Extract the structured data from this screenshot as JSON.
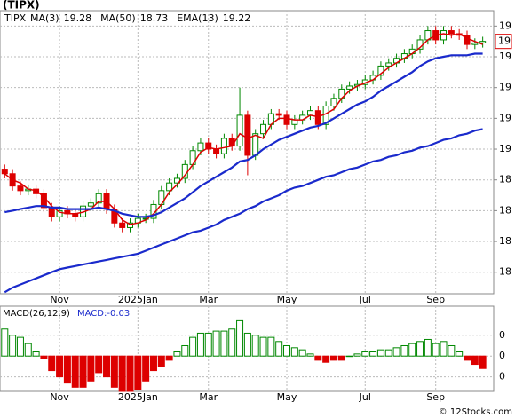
{
  "chart_data": {
    "type": "candlestick",
    "title": "(TIPX)",
    "symbol": "TIPX",
    "symbol_color": "#008800",
    "xlim": [
      -0.6,
      62.4
    ],
    "xticks": [
      {
        "value": 7,
        "label": "Nov"
      },
      {
        "value": 17,
        "label": "2025Jan"
      },
      {
        "value": 26,
        "label": "Mar"
      },
      {
        "value": 36,
        "label": "May"
      },
      {
        "value": 46,
        "label": "Jul"
      },
      {
        "value": 55,
        "label": "Sep"
      }
    ],
    "ylim": [
      17.66,
      19.5
    ],
    "yticks": [
      {
        "value": 19.4,
        "label": "19"
      },
      {
        "value": 19.2,
        "label": "19"
      },
      {
        "value": 19.0,
        "label": "19"
      },
      {
        "value": 18.8,
        "label": "19"
      },
      {
        "value": 18.6,
        "label": "19"
      },
      {
        "value": 18.4,
        "label": "18"
      },
      {
        "value": 18.2,
        "label": "18"
      },
      {
        "value": 18.0,
        "label": "18"
      },
      {
        "value": 17.8,
        "label": "18"
      }
    ],
    "grid": true,
    "up_color": "#008800",
    "down_color": "#dd0000",
    "open": [
      18.47,
      18.44,
      18.36,
      18.33,
      18.34,
      18.31,
      18.22,
      18.16,
      18.2,
      18.18,
      18.16,
      18.23,
      18.25,
      18.31,
      18.21,
      18.12,
      18.09,
      18.12,
      18.15,
      18.15,
      18.24,
      18.33,
      18.38,
      18.41,
      18.5,
      18.59,
      18.64,
      18.6,
      18.57,
      18.67,
      18.62,
      18.82,
      18.56,
      18.7,
      18.76,
      18.83,
      18.82,
      18.76,
      18.79,
      18.82,
      18.85,
      18.76,
      18.88,
      18.93,
      18.99,
      19.01,
      19.02,
      19.05,
      19.08,
      19.14,
      19.16,
      19.19,
      19.22,
      19.25,
      19.31,
      19.37,
      19.31,
      19.37,
      19.35,
      19.34,
      19.28,
      19.29
    ],
    "high": [
      18.5,
      18.47,
      18.39,
      18.37,
      18.37,
      18.34,
      18.25,
      18.23,
      18.23,
      18.21,
      18.26,
      18.28,
      18.34,
      18.34,
      18.24,
      18.15,
      18.15,
      18.18,
      18.18,
      18.27,
      18.36,
      18.41,
      18.44,
      18.53,
      18.62,
      18.67,
      18.67,
      18.63,
      18.7,
      18.7,
      19.0,
      18.85,
      18.73,
      18.79,
      18.86,
      18.86,
      18.85,
      18.82,
      18.85,
      18.88,
      18.88,
      18.91,
      18.96,
      19.02,
      19.04,
      19.05,
      19.08,
      19.11,
      19.17,
      19.19,
      19.22,
      19.25,
      19.28,
      19.34,
      19.4,
      19.4,
      19.4,
      19.4,
      19.38,
      19.37,
      19.32,
      19.33
    ],
    "low": [
      18.41,
      18.33,
      18.3,
      18.3,
      18.28,
      18.19,
      18.13,
      18.13,
      18.15,
      18.13,
      18.13,
      18.2,
      18.22,
      18.18,
      18.09,
      18.06,
      18.06,
      18.09,
      18.12,
      18.12,
      18.21,
      18.3,
      18.35,
      18.38,
      18.47,
      18.56,
      18.57,
      18.54,
      18.54,
      18.59,
      18.59,
      18.43,
      18.53,
      18.67,
      18.73,
      18.79,
      18.73,
      18.73,
      18.76,
      18.79,
      18.73,
      18.73,
      18.85,
      18.9,
      18.96,
      18.98,
      18.99,
      19.02,
      19.05,
      19.11,
      19.13,
      19.16,
      19.19,
      19.22,
      19.28,
      19.28,
      19.28,
      19.32,
      19.31,
      19.25,
      19.25,
      19.26
    ],
    "close": [
      18.44,
      18.36,
      18.33,
      18.34,
      18.31,
      18.22,
      18.16,
      18.2,
      18.18,
      18.16,
      18.23,
      18.25,
      18.31,
      18.21,
      18.12,
      18.09,
      18.12,
      18.15,
      18.15,
      18.24,
      18.33,
      18.38,
      18.41,
      18.5,
      18.59,
      18.64,
      18.6,
      18.57,
      18.67,
      18.62,
      18.82,
      18.56,
      18.7,
      18.76,
      18.83,
      18.82,
      18.76,
      18.79,
      18.82,
      18.85,
      18.76,
      18.88,
      18.93,
      18.99,
      19.01,
      19.02,
      19.05,
      19.08,
      19.14,
      19.16,
      19.19,
      19.22,
      19.25,
      19.31,
      19.37,
      19.31,
      19.37,
      19.35,
      19.34,
      19.28,
      19.29,
      19.3
    ],
    "last_price": {
      "value": 19.3,
      "label": "19"
    },
    "series": [
      {
        "name": "MA(3)",
        "color": "#dd0000",
        "last": 19.28,
        "values": [
          18.44,
          18.4,
          18.38,
          18.34,
          18.33,
          18.29,
          18.23,
          18.19,
          18.18,
          18.18,
          18.19,
          18.21,
          18.26,
          18.26,
          18.21,
          18.14,
          18.11,
          18.12,
          18.14,
          18.18,
          18.24,
          18.32,
          18.37,
          18.43,
          18.5,
          18.58,
          18.61,
          18.6,
          18.61,
          18.62,
          18.7,
          18.67,
          18.69,
          18.67,
          18.76,
          18.8,
          18.8,
          18.79,
          18.79,
          18.82,
          18.81,
          18.83,
          18.86,
          18.93,
          18.98,
          19.01,
          19.03,
          19.05,
          19.09,
          19.13,
          19.16,
          19.19,
          19.22,
          19.26,
          19.31,
          19.34,
          19.35,
          19.34,
          19.35,
          19.32,
          19.3,
          19.28
        ]
      },
      {
        "name": "MA(50)",
        "color": "#1a2acc",
        "last": 18.73,
        "values": [
          17.67,
          17.7,
          17.72,
          17.74,
          17.76,
          17.78,
          17.8,
          17.82,
          17.83,
          17.84,
          17.85,
          17.86,
          17.87,
          17.88,
          17.89,
          17.9,
          17.91,
          17.92,
          17.94,
          17.96,
          17.98,
          18.0,
          18.02,
          18.04,
          18.06,
          18.07,
          18.09,
          18.11,
          18.14,
          18.16,
          18.18,
          18.21,
          18.23,
          18.26,
          18.28,
          18.3,
          18.33,
          18.35,
          18.36,
          18.38,
          18.4,
          18.42,
          18.43,
          18.45,
          18.47,
          18.48,
          18.5,
          18.52,
          18.53,
          18.55,
          18.56,
          18.58,
          18.59,
          18.61,
          18.62,
          18.64,
          18.66,
          18.67,
          18.69,
          18.7,
          18.72,
          18.73
        ]
      },
      {
        "name": "EMA(13)",
        "color": "#1a2acc",
        "last": 19.22,
        "values": [
          18.19,
          18.2,
          18.21,
          18.22,
          18.23,
          18.23,
          18.22,
          18.22,
          18.21,
          18.21,
          18.21,
          18.21,
          18.22,
          18.21,
          18.2,
          18.18,
          18.17,
          18.16,
          18.16,
          18.17,
          18.19,
          18.22,
          18.25,
          18.28,
          18.32,
          18.36,
          18.39,
          18.42,
          18.45,
          18.48,
          18.52,
          18.53,
          18.56,
          18.6,
          18.63,
          18.66,
          18.68,
          18.7,
          18.72,
          18.74,
          18.75,
          18.77,
          18.8,
          18.83,
          18.86,
          18.89,
          18.91,
          18.94,
          18.98,
          19.01,
          19.04,
          19.07,
          19.1,
          19.14,
          19.17,
          19.19,
          19.2,
          19.21,
          19.21,
          19.21,
          19.22,
          19.22
        ]
      }
    ],
    "macd": {
      "label": "MACD(26,12,9)",
      "value": -0.03,
      "value_label": "MACD:-0.03",
      "up_color": "#008800",
      "down_color": "#dd0000",
      "ylim": [
        -0.17,
        0.24
      ],
      "yticks": [
        {
          "value": 0.1,
          "label": "0"
        },
        0,
        {
          "value": -0.1,
          "label": "0"
        }
      ],
      "values": [
        0.13,
        0.1,
        0.09,
        0.06,
        0.02,
        -0.01,
        -0.07,
        -0.1,
        -0.13,
        -0.15,
        -0.15,
        -0.12,
        -0.08,
        -0.1,
        -0.15,
        -0.17,
        -0.17,
        -0.16,
        -0.12,
        -0.07,
        -0.05,
        -0.02,
        0.02,
        0.05,
        0.09,
        0.11,
        0.11,
        0.12,
        0.12,
        0.13,
        0.17,
        0.11,
        0.1,
        0.09,
        0.09,
        0.07,
        0.05,
        0.04,
        0.03,
        0.01,
        -0.02,
        -0.03,
        -0.02,
        -0.02,
        0.0,
        0.01,
        0.02,
        0.02,
        0.03,
        0.03,
        0.04,
        0.05,
        0.06,
        0.07,
        0.08,
        0.06,
        0.07,
        0.05,
        0.02,
        -0.02,
        -0.04,
        -0.06
      ]
    },
    "footer": "© 12Stocks.com"
  }
}
